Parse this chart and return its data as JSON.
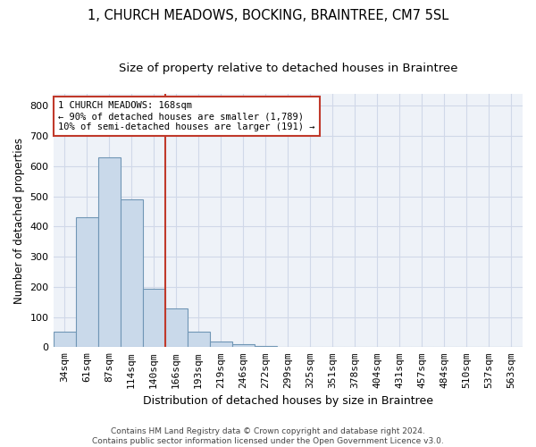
{
  "title1": "1, CHURCH MEADOWS, BOCKING, BRAINTREE, CM7 5SL",
  "title2": "Size of property relative to detached houses in Braintree",
  "xlabel": "Distribution of detached houses by size in Braintree",
  "ylabel": "Number of detached properties",
  "footnote1": "Contains HM Land Registry data © Crown copyright and database right 2024.",
  "footnote2": "Contains public sector information licensed under the Open Government Licence v3.0.",
  "bin_labels": [
    "34sqm",
    "61sqm",
    "87sqm",
    "114sqm",
    "140sqm",
    "166sqm",
    "193sqm",
    "219sqm",
    "246sqm",
    "272sqm",
    "299sqm",
    "325sqm",
    "351sqm",
    "378sqm",
    "404sqm",
    "431sqm",
    "457sqm",
    "484sqm",
    "510sqm",
    "537sqm",
    "563sqm"
  ],
  "bar_heights": [
    50,
    430,
    630,
    490,
    195,
    128,
    50,
    20,
    10,
    5,
    0,
    0,
    0,
    0,
    0,
    0,
    0,
    0,
    0,
    0,
    0
  ],
  "bar_color": "#c9d9ea",
  "bar_edge_color": "#7096b5",
  "grid_color": "#d0d8e8",
  "background_color": "#eef2f8",
  "vline_color": "#c0392b",
  "vline_x_index": 4.5,
  "annotation_text": "1 CHURCH MEADOWS: 168sqm\n← 90% of detached houses are smaller (1,789)\n10% of semi-detached houses are larger (191) →",
  "annotation_box_color": "#c0392b",
  "ylim": [
    0,
    840
  ],
  "yticks": [
    0,
    100,
    200,
    300,
    400,
    500,
    600,
    700,
    800
  ],
  "title1_fontsize": 10.5,
  "title2_fontsize": 9.5,
  "xlabel_fontsize": 9,
  "ylabel_fontsize": 8.5,
  "tick_fontsize": 8,
  "annotation_fontsize": 7.5,
  "footnote_fontsize": 6.5
}
